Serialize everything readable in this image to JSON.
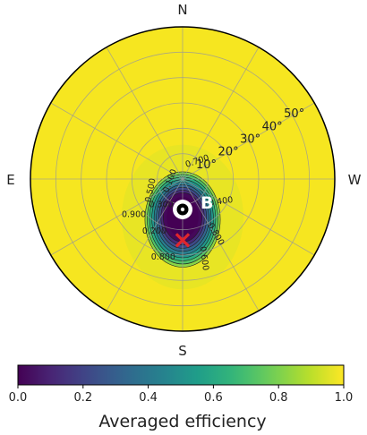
{
  "chart_data": {
    "type": "heatmap",
    "projection": "polar",
    "directions": {
      "north": "N",
      "south": "S",
      "east": "E",
      "west": "W"
    },
    "radial_tick_labels": [
      "10°",
      "20°",
      "30°",
      "40°",
      "50°"
    ],
    "radial_ticks": [
      10,
      20,
      30,
      40,
      50
    ],
    "rmax": 60,
    "angular_grid_step_deg": 30,
    "contour_labels": [
      "0.700",
      "0.400",
      "0.800",
      "0.100",
      "0.500",
      "0.300",
      "0.200",
      "0.600",
      "0.800",
      "0.900"
    ],
    "contour_levels": [
      0.1,
      0.2,
      0.3,
      0.4,
      0.5,
      0.6,
      0.7,
      0.8,
      0.9
    ],
    "field": {
      "background_value": 1.0,
      "minimum_value": 0.0,
      "low_region_center_r": 15,
      "low_region_center_side": "south",
      "low_region_half_width": 15,
      "low_region_half_height": 19
    },
    "marker_B": {
      "label": "B",
      "r": 12,
      "side": "south"
    },
    "marker_x": {
      "symbol": "×",
      "r": 24,
      "side": "south",
      "color": "#e0262c"
    },
    "colorbar": {
      "label": "Averaged efficiency",
      "min": 0.0,
      "max": 1.0,
      "tick_labels": [
        "0.0",
        "0.2",
        "0.4",
        "0.6",
        "0.8",
        "1.0"
      ],
      "tick_values": [
        0.0,
        0.2,
        0.4,
        0.6,
        0.8,
        1.0
      ],
      "colormap": "viridis"
    },
    "grid": true
  }
}
